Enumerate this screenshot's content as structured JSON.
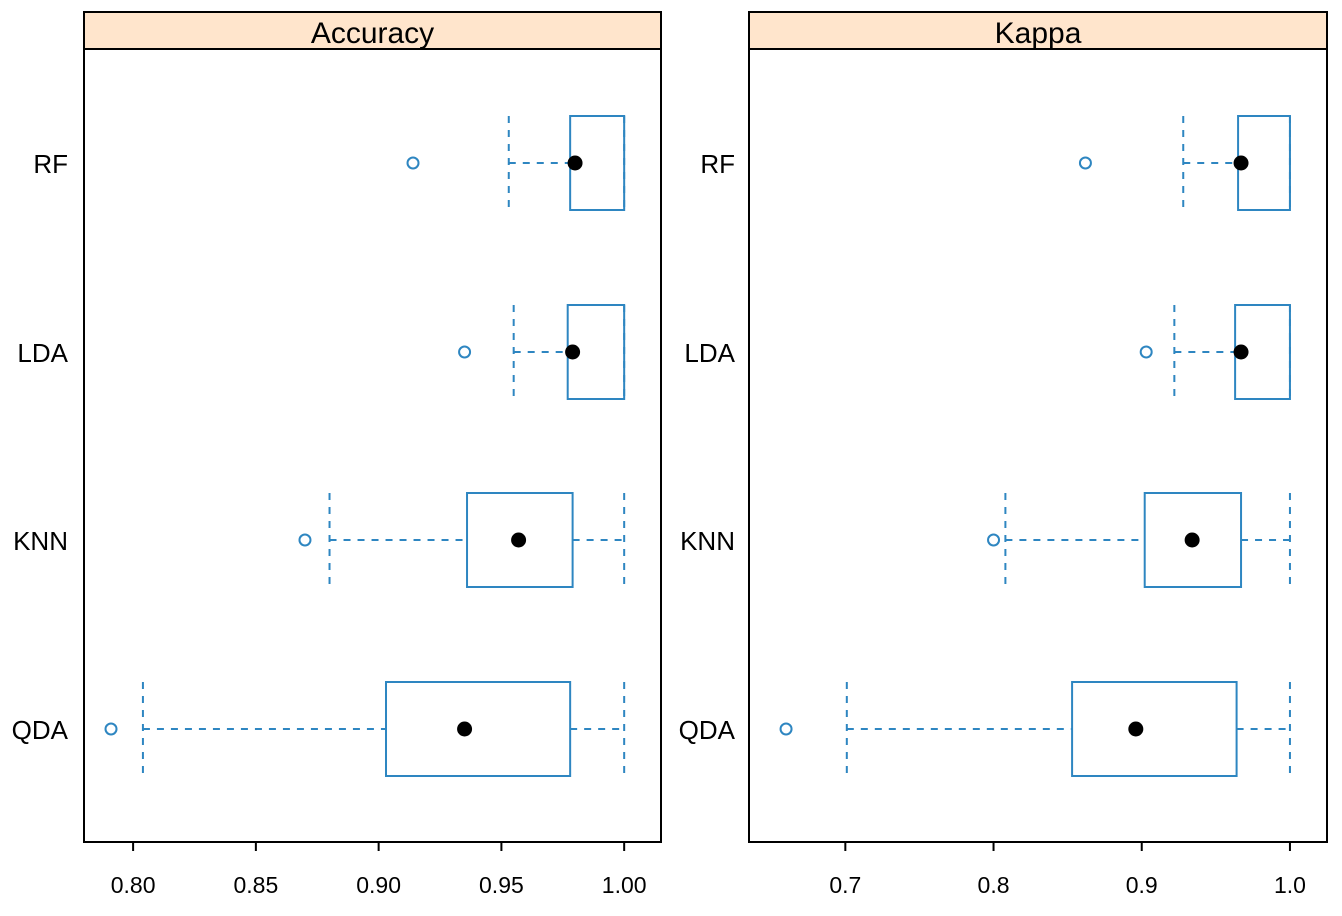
{
  "chart_data": [
    {
      "type": "boxplot",
      "orientation": "horizontal",
      "title": "Accuracy",
      "categories": [
        "RF",
        "LDA",
        "KNN",
        "QDA"
      ],
      "xlim": [
        0.78,
        1.015
      ],
      "xticks": [
        0.8,
        0.85,
        0.9,
        0.95,
        1.0
      ],
      "xtick_labels": [
        "0.80",
        "0.85",
        "0.90",
        "0.95",
        "1.00"
      ],
      "grid": false,
      "colors": {
        "box": "#2e86c1",
        "median": "#000000",
        "strip": "#ffe5cc"
      },
      "boxes": [
        {
          "category": "RF",
          "whisker_low": 0.953,
          "q1": 0.978,
          "median": 0.98,
          "q3": 1.0,
          "whisker_high": 1.0,
          "outliers": [
            0.914
          ]
        },
        {
          "category": "LDA",
          "whisker_low": 0.955,
          "q1": 0.977,
          "median": 0.979,
          "q3": 1.0,
          "whisker_high": 1.0,
          "outliers": [
            0.935
          ]
        },
        {
          "category": "KNN",
          "whisker_low": 0.88,
          "q1": 0.936,
          "median": 0.957,
          "q3": 0.979,
          "whisker_high": 1.0,
          "outliers": [
            0.87
          ]
        },
        {
          "category": "QDA",
          "whisker_low": 0.804,
          "q1": 0.903,
          "median": 0.935,
          "q3": 0.978,
          "whisker_high": 1.0,
          "outliers": [
            0.791
          ]
        }
      ]
    },
    {
      "type": "boxplot",
      "orientation": "horizontal",
      "title": "Kappa",
      "categories": [
        "RF",
        "LDA",
        "KNN",
        "QDA"
      ],
      "xlim": [
        0.635,
        1.025
      ],
      "xticks": [
        0.7,
        0.8,
        0.9,
        1.0
      ],
      "xtick_labels": [
        "0.7",
        "0.8",
        "0.9",
        "1.0"
      ],
      "grid": false,
      "colors": {
        "box": "#2e86c1",
        "median": "#000000",
        "strip": "#ffe5cc"
      },
      "boxes": [
        {
          "category": "RF",
          "whisker_low": 0.928,
          "q1": 0.965,
          "median": 0.967,
          "q3": 1.0,
          "whisker_high": 1.0,
          "outliers": [
            0.862
          ]
        },
        {
          "category": "LDA",
          "whisker_low": 0.922,
          "q1": 0.963,
          "median": 0.967,
          "q3": 1.0,
          "whisker_high": 1.0,
          "outliers": [
            0.903
          ]
        },
        {
          "category": "KNN",
          "whisker_low": 0.808,
          "q1": 0.902,
          "median": 0.934,
          "q3": 0.967,
          "whisker_high": 1.0,
          "outliers": [
            0.8
          ]
        },
        {
          "category": "QDA",
          "whisker_low": 0.701,
          "q1": 0.853,
          "median": 0.896,
          "q3": 0.964,
          "whisker_high": 1.0,
          "outliers": [
            0.66
          ]
        }
      ]
    }
  ]
}
